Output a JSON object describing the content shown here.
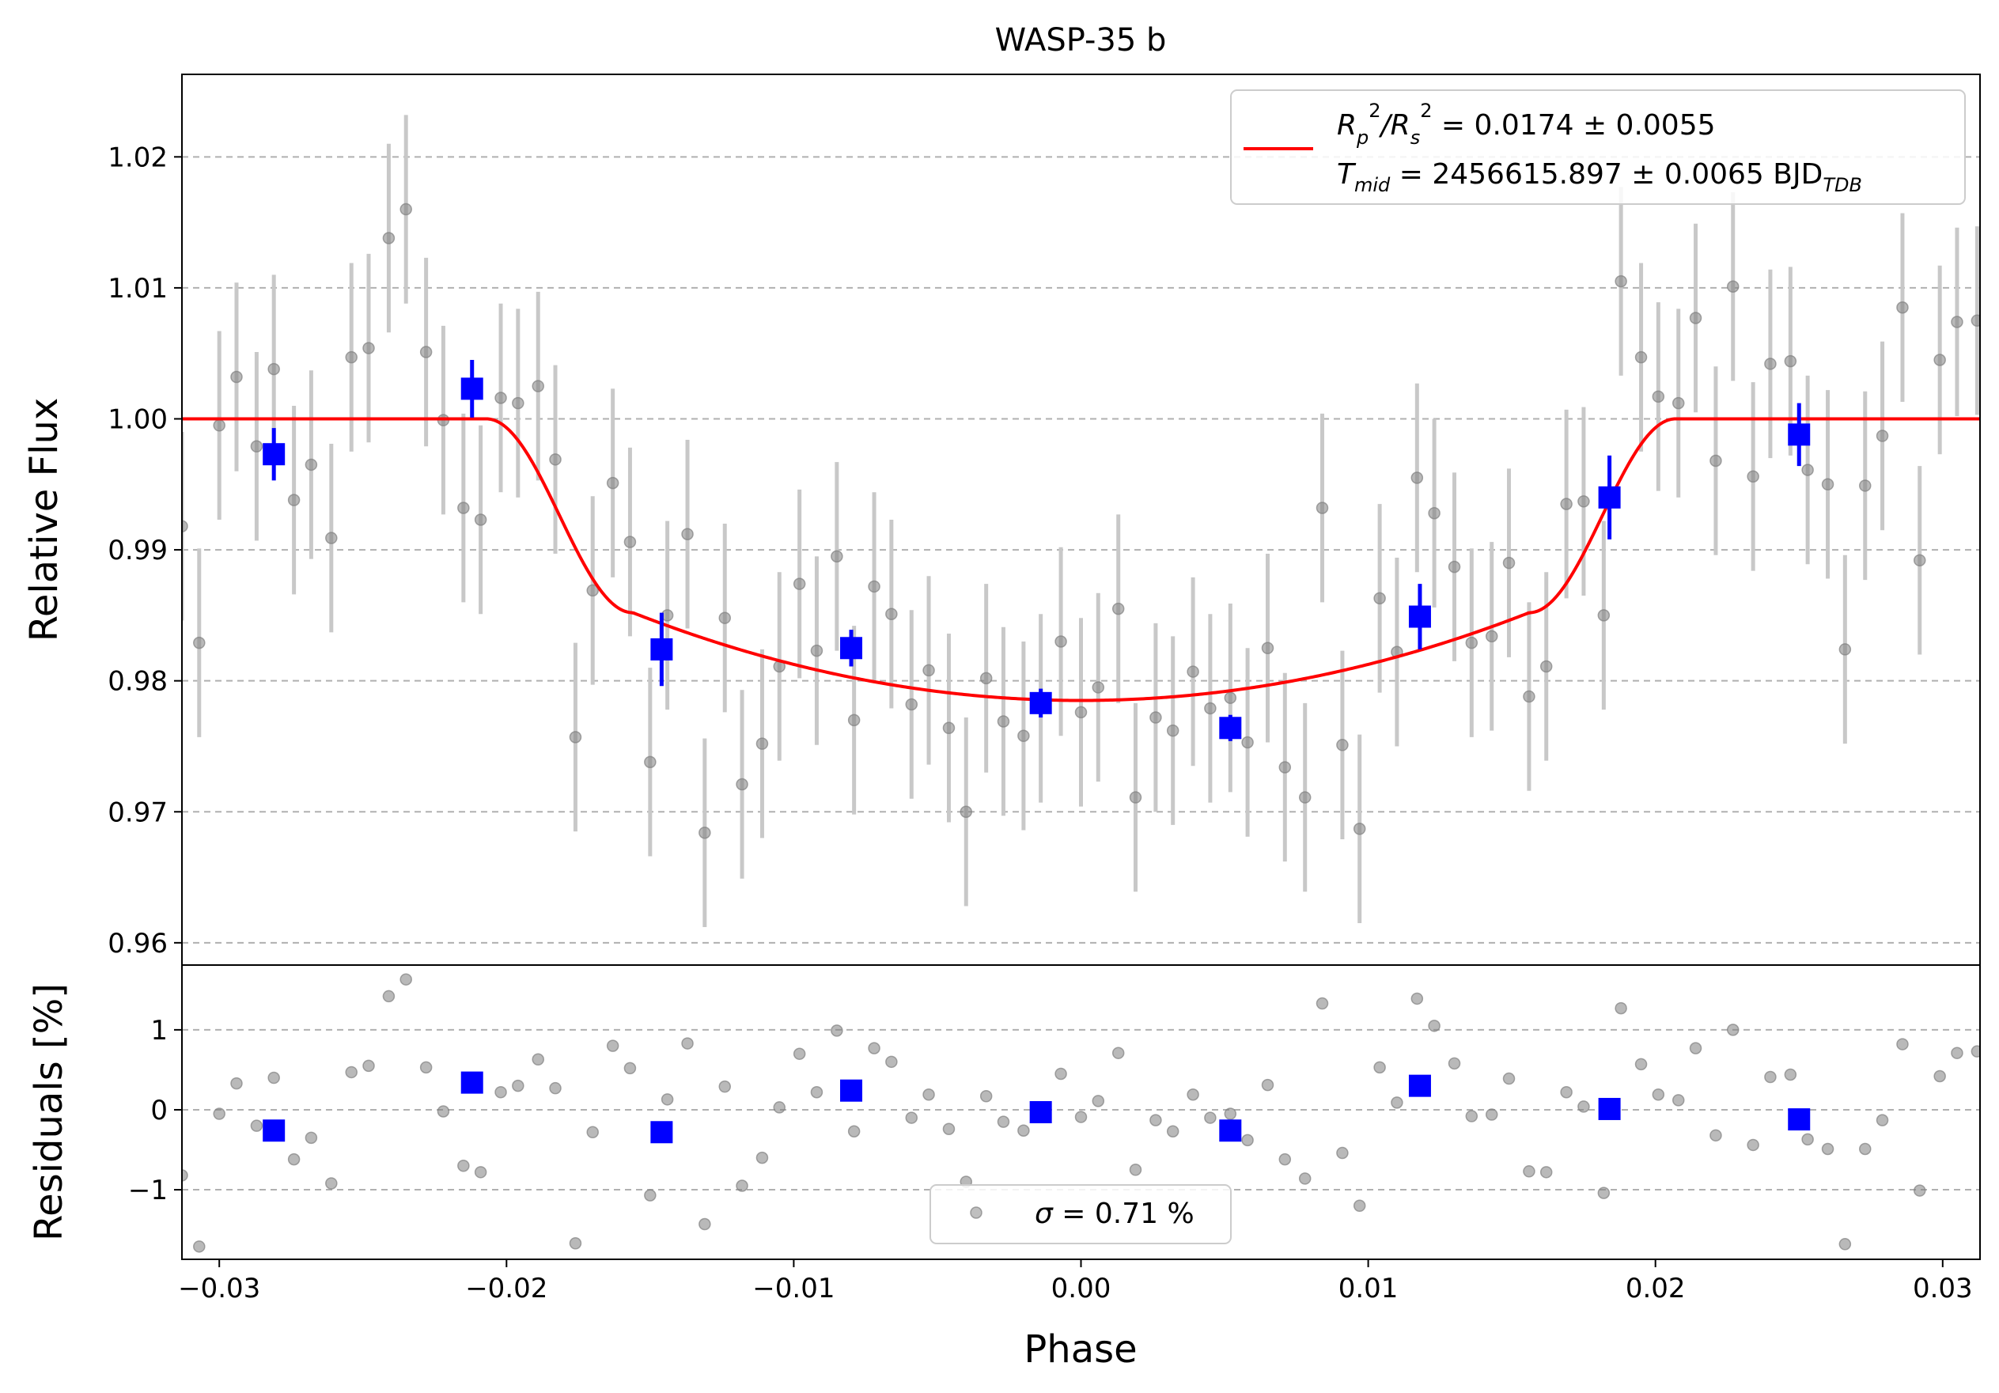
{
  "chart_data": {
    "type": "scatter",
    "title": "WASP-35 b",
    "xlabel": "Phase",
    "top_panel": {
      "ylabel": "Relative Flux",
      "xlim": [
        -0.0313,
        0.0313
      ],
      "ylim": [
        0.9583,
        1.0263
      ],
      "yticks": [
        "0.96",
        "0.97",
        "0.98",
        "0.99",
        "1.00",
        "1.01",
        "1.02"
      ],
      "ytick_values": [
        0.96,
        0.97,
        0.98,
        0.99,
        1.0,
        1.01,
        1.02
      ],
      "grid": "horizontal dashed",
      "legend": {
        "placement": "upper-right",
        "line1": {
          "prefix": "R",
          "sub1": "p",
          "mid": "/R",
          "sub2": "s",
          "rest": " = 0.0174 ± 0.0055"
        },
        "line2": {
          "prefix": "T",
          "sub1": "mid",
          "rest": " = 2456615.897 ± 0.0065 BJD",
          "sub2": "TDB"
        }
      },
      "raw_points": {
        "color": "#808080",
        "x": [
          -0.0313,
          -0.0307,
          -0.03,
          -0.0294,
          -0.0287,
          -0.0281,
          -0.0274,
          -0.0268,
          -0.0261,
          -0.0254,
          -0.0248,
          -0.0241,
          -0.0235,
          -0.0228,
          -0.0222,
          -0.0215,
          -0.0209,
          -0.0202,
          -0.0196,
          -0.0189,
          -0.0183,
          -0.0176,
          -0.017,
          -0.0163,
          -0.0157,
          -0.015,
          -0.0144,
          -0.0137,
          -0.0131,
          -0.0124,
          -0.0118,
          -0.0111,
          -0.0105,
          -0.0098,
          -0.0092,
          -0.0085,
          -0.0079,
          -0.0072,
          -0.0066,
          -0.0059,
          -0.0053,
          -0.0046,
          -0.004,
          -0.0033,
          -0.0027,
          -0.002,
          -0.0014,
          -0.0007,
          0.0,
          0.0006,
          0.0013,
          0.0019,
          0.0026,
          0.0032,
          0.0039,
          0.0045,
          0.0052,
          0.0058,
          0.0065,
          0.0071,
          0.0078,
          0.0084,
          0.0091,
          0.0097,
          0.0104,
          0.011,
          0.0117,
          0.0123,
          0.013,
          0.0136,
          0.0143,
          0.0149,
          0.0156,
          0.0162,
          0.0169,
          0.0175,
          0.0182,
          0.0188,
          0.0195,
          0.0201,
          0.0208,
          0.0214,
          0.0221,
          0.0227,
          0.0234,
          0.024,
          0.0247,
          0.0253,
          0.026,
          0.0266,
          0.0273,
          0.0279,
          0.0286,
          0.0292,
          0.0299,
          0.0305,
          0.0312
        ],
        "y": [
          0.9918,
          0.9829,
          0.9995,
          1.0032,
          0.9979,
          1.0038,
          0.9938,
          0.9965,
          0.9909,
          1.0047,
          1.0054,
          1.0138,
          1.016,
          1.0051,
          0.9999,
          0.9932,
          0.9923,
          1.0016,
          1.0012,
          1.0025,
          0.9969,
          0.9757,
          0.9869,
          0.9951,
          0.9906,
          0.9738,
          0.985,
          0.9912,
          0.9684,
          0.9848,
          0.9721,
          0.9752,
          0.9811,
          0.9874,
          0.9823,
          0.9895,
          0.977,
          0.9872,
          0.9851,
          0.9782,
          0.9808,
          0.9764,
          0.97,
          0.9802,
          0.9769,
          0.9758,
          0.9779,
          0.983,
          0.9776,
          0.9795,
          0.9855,
          0.9711,
          0.9772,
          0.9762,
          0.9807,
          0.9779,
          0.9787,
          0.9753,
          0.9825,
          0.9734,
          0.9711,
          0.9932,
          0.9751,
          0.9687,
          0.9863,
          0.9822,
          0.9955,
          0.9928,
          0.9887,
          0.9829,
          0.9834,
          0.989,
          0.9788,
          0.9811,
          0.9935,
          0.9937,
          0.985,
          1.0105,
          1.0047,
          1.0017,
          1.0012,
          1.0077,
          0.9968,
          1.0101,
          0.9956,
          1.0042,
          1.0044,
          0.9961,
          0.995,
          0.9824,
          0.9949,
          0.9987,
          1.0085,
          0.9892,
          1.0045,
          1.0074,
          1.0075
        ],
        "yerr": 0.0072
      },
      "binned_points": {
        "color": "#0000ff",
        "x": [
          -0.0281,
          -0.0212,
          -0.0146,
          -0.008,
          -0.0014,
          0.0052,
          0.0118,
          0.0184,
          0.025
        ],
        "y": [
          0.9973,
          1.0023,
          0.9824,
          0.9825,
          0.9783,
          0.9764,
          0.9849,
          0.994,
          0.9988
        ],
        "yerr": [
          0.002,
          0.0022,
          0.0028,
          0.0014,
          0.0011,
          0.001,
          0.0025,
          0.0032,
          0.0024
        ]
      },
      "model": {
        "color": "#ff0000",
        "name": "transit model",
        "t14": 0.0207,
        "t23": 0.0156,
        "depth_ingress_end": 0.0148,
        "depth_center": 0.0215
      }
    },
    "bottom_panel": {
      "ylabel": "Residuals [%]",
      "ylim": [
        -1.87,
        1.81
      ],
      "yticks": [
        "−1",
        "0",
        "1"
      ],
      "ytick_values": [
        -1,
        0,
        1
      ],
      "xticks": [
        "−0.03",
        "−0.02",
        "−0.01",
        "0.00",
        "0.01",
        "0.02",
        "0.03"
      ],
      "xtick_values": [
        -0.03,
        -0.02,
        -0.01,
        0.0,
        0.01,
        0.02,
        0.03
      ],
      "legend": {
        "placement": "lower-center",
        "text": " = 0.71 %",
        "symbol": "σ"
      },
      "raw_residuals": [
        -0.82,
        -1.71,
        -0.05,
        0.33,
        -0.2,
        0.4,
        -0.62,
        -0.35,
        -0.92,
        0.47,
        0.55,
        1.42,
        1.63,
        0.53,
        -0.02,
        -0.7,
        -0.78,
        0.22,
        0.3,
        0.63,
        0.27,
        -1.67,
        -0.28,
        0.8,
        0.52,
        -1.07,
        0.13,
        0.83,
        -1.43,
        0.29,
        -0.95,
        -0.6,
        0.03,
        0.7,
        0.22,
        0.99,
        -0.27,
        0.77,
        0.6,
        -0.1,
        0.19,
        -0.24,
        -0.9,
        0.17,
        -0.15,
        -0.26,
        0.03,
        0.45,
        -0.09,
        0.11,
        0.71,
        -0.75,
        -0.13,
        -0.27,
        0.19,
        -0.1,
        -0.05,
        -0.38,
        0.31,
        -0.62,
        -0.86,
        1.33,
        -0.54,
        -1.2,
        0.53,
        0.09,
        1.39,
        1.05,
        0.58,
        -0.08,
        -0.06,
        0.39,
        -0.77,
        -0.78,
        0.22,
        0.04,
        -1.04,
        1.27,
        0.57,
        0.19,
        0.12,
        0.77,
        -0.32,
        1.0,
        -0.44,
        0.41,
        0.44,
        -0.37,
        -0.49,
        -1.68,
        -0.49,
        -0.13,
        0.82,
        -1.01,
        0.42,
        0.71,
        0.73
      ],
      "binned_residuals": [
        -0.26,
        0.34,
        -0.28,
        0.24,
        -0.03,
        -0.26,
        0.3,
        0.01,
        -0.12
      ]
    }
  }
}
